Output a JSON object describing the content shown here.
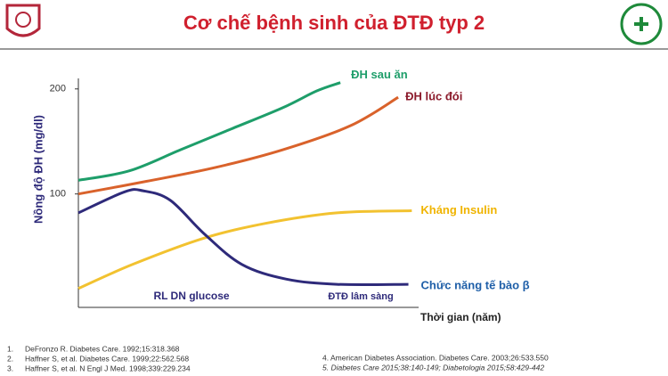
{
  "chart_data": {
    "type": "line",
    "title": "Cơ chế bệnh sinh của ĐTĐ typ 2",
    "ylabel": "Nồng độ ĐH (mg/dl)",
    "xlabel": "Thời gian (năm)",
    "annotations": [
      "RL DN glucose",
      "ĐTĐ lâm sàng"
    ],
    "xlim": [
      0,
      10
    ],
    "ylim": [
      -8,
      210
    ],
    "yticks": [
      100,
      200
    ],
    "series": [
      {
        "name": "ĐH sau ăn",
        "color": "#1e9e6a",
        "label_color": "#1e9e6a",
        "x": [
          0,
          1.5,
          3,
          4.5,
          6,
          7,
          7.7
        ],
        "values": [
          113,
          122,
          142,
          162,
          182,
          198,
          206
        ]
      },
      {
        "name": "ĐH lúc đói",
        "color": "#d9622b",
        "label_color": "#8b1a2b",
        "x": [
          0,
          2,
          4,
          6,
          8,
          9.4
        ],
        "values": [
          100,
          112,
          125,
          142,
          165,
          192
        ]
      },
      {
        "name": "Kháng Insulin",
        "color": "#f2c230",
        "label_color": "#f0b400",
        "x": [
          0,
          1.6,
          3.7,
          5.5,
          7.6,
          9.8
        ],
        "values": [
          10,
          33,
          58,
          72,
          82,
          84
        ]
      },
      {
        "name": "Chức năng tế bào β",
        "color": "#2e2a7a",
        "label_color": "#1f5fa8",
        "x": [
          0,
          1.36,
          1.9,
          2.7,
          3.7,
          4.8,
          6.1,
          7.6,
          9.7
        ],
        "values": [
          82,
          102,
          103,
          94,
          62,
          33,
          19,
          14,
          14
        ]
      }
    ]
  },
  "references_left": [
    {
      "num": "1.",
      "text": "DeFronzo R. Diabetes Care. 1992;15:318.368"
    },
    {
      "num": "2.",
      "text": "Haffner S, et al. Diabetes Care. 1999;22:562.568"
    },
    {
      "num": "3.",
      "text": "Haffner S, et al. N Engl J Med. 1998;339:229.234"
    }
  ],
  "references_right": [
    "4. American Diabetes Association. Diabetes Care. 2003;26:533.550",
    "5. Diabetes Care 2015;38:140-149; Diabetologia 2015;58:429-442"
  ]
}
